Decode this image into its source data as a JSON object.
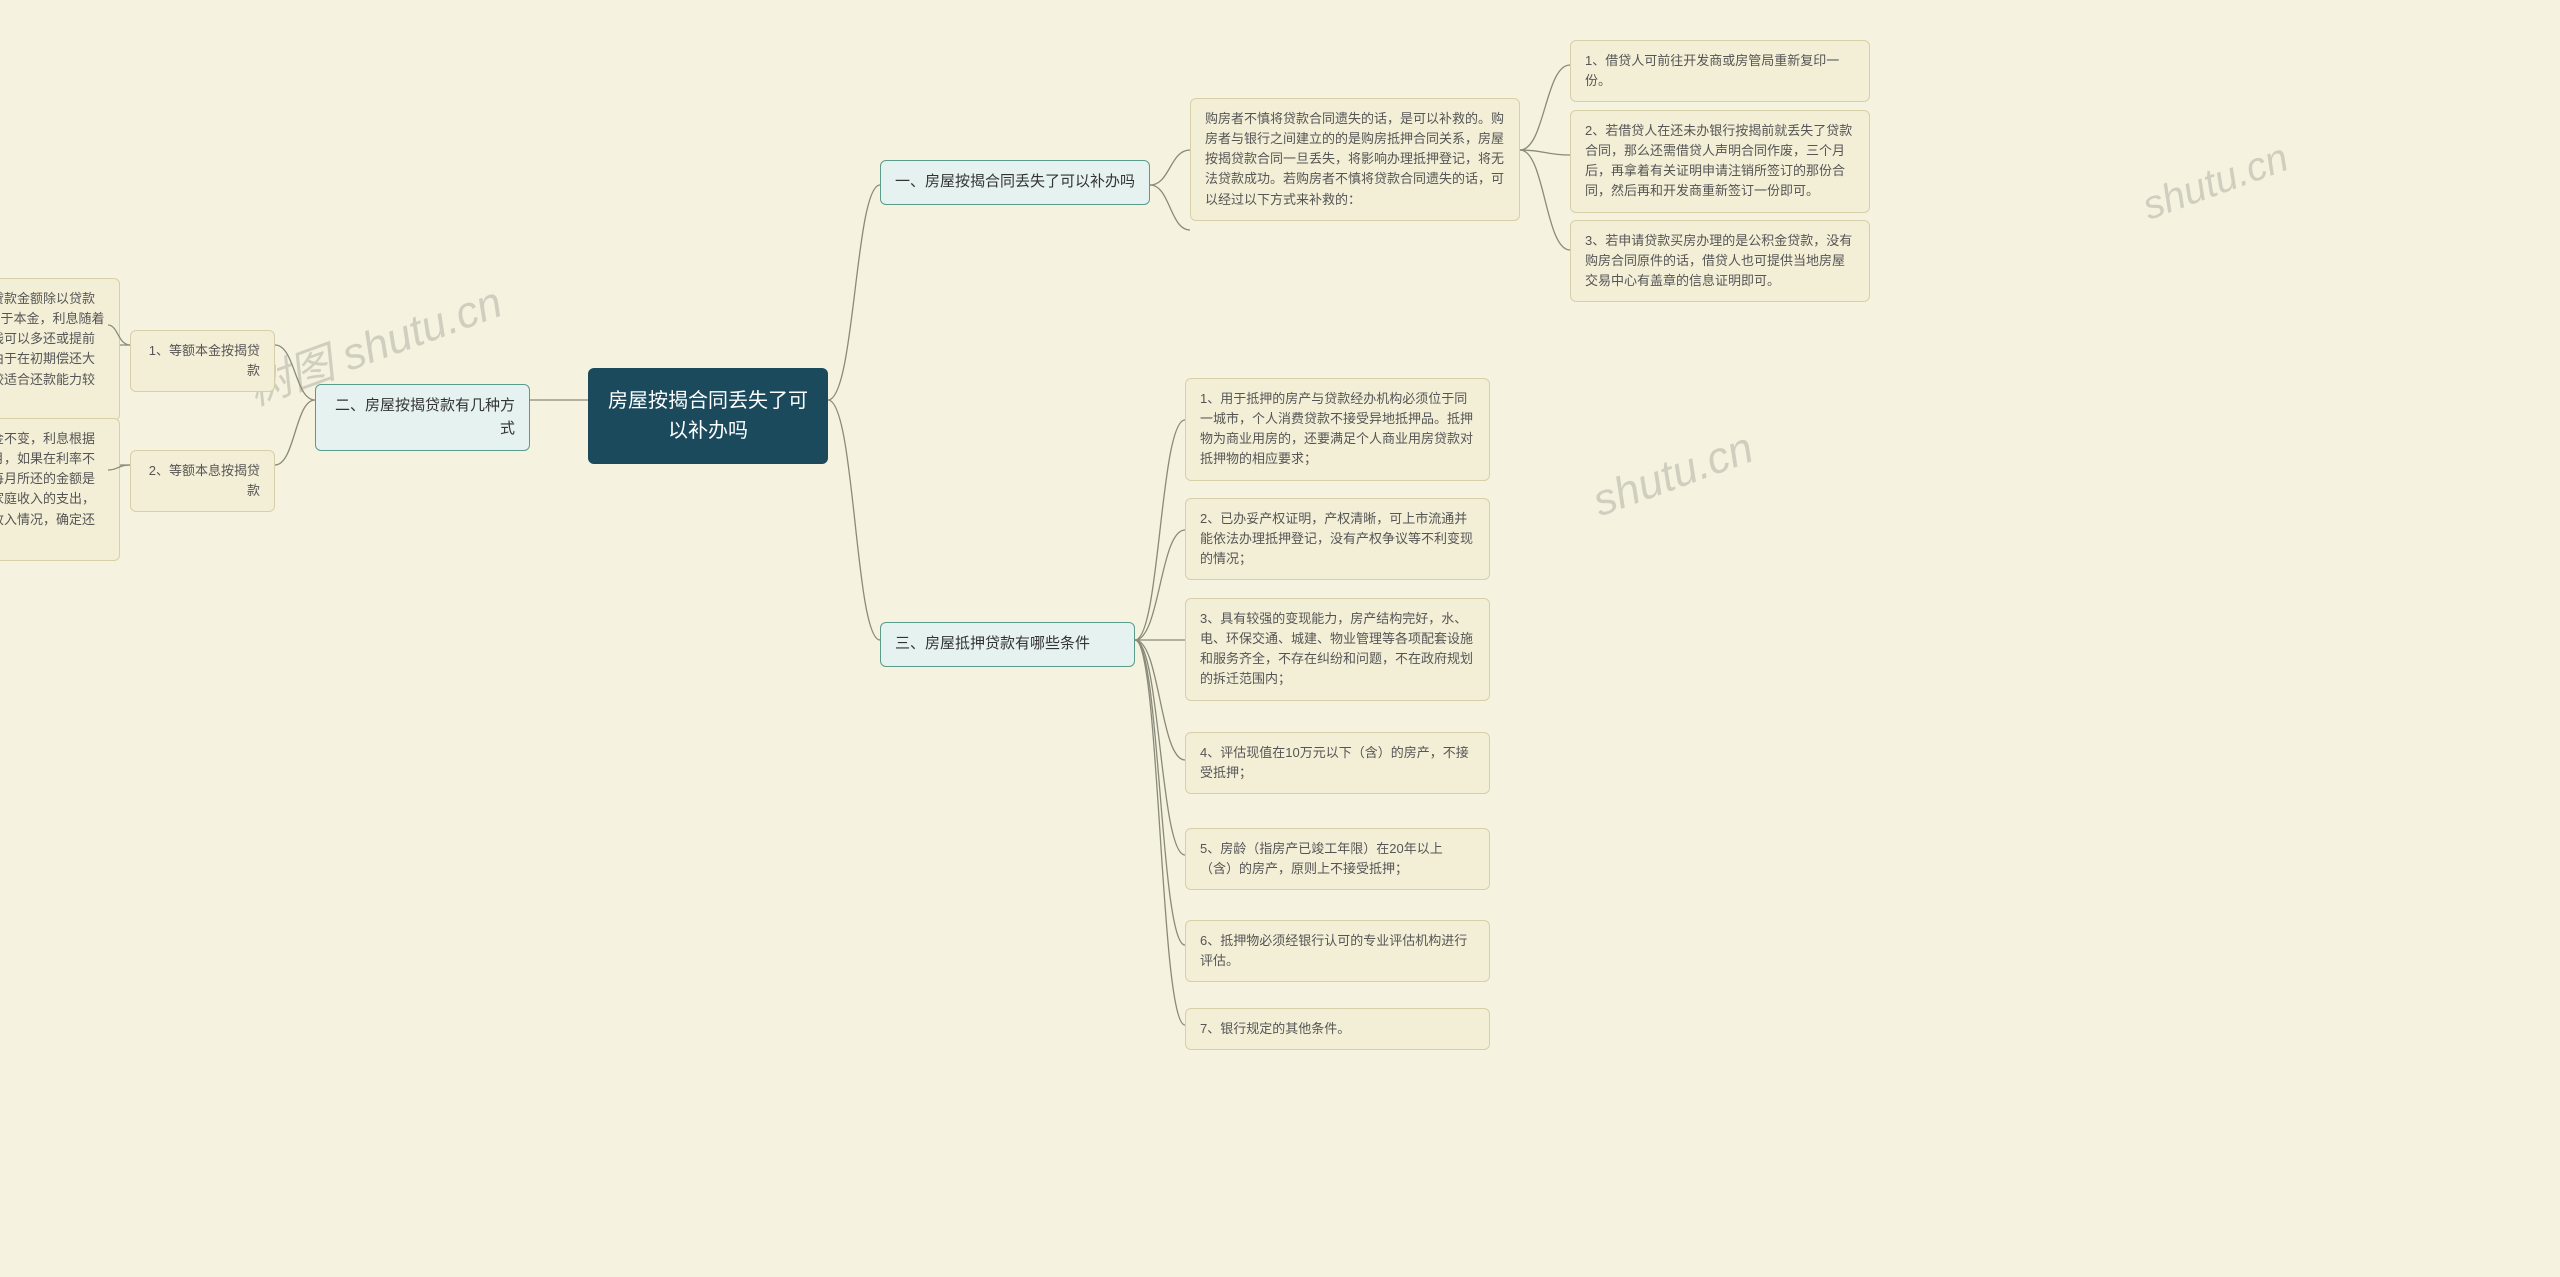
{
  "colors": {
    "background": "#f5f2e0",
    "root_bg": "#1b4a5c",
    "root_fg": "#ffffff",
    "branch_bg": "#e6f2ef",
    "branch_border": "#5a9b8c",
    "leaf_bg": "#f3efd7",
    "leaf_border": "#d6cfa8",
    "connector": "#8a8a7a",
    "watermark": "rgba(140,140,130,0.35)"
  },
  "root": {
    "text": "房屋按揭合同丢失了可以补办吗"
  },
  "branches": {
    "b1": {
      "label": "一、房屋按揭合同丢失了可以补办吗"
    },
    "b2": {
      "label": "二、房屋按揭贷款有几种方式"
    },
    "b3": {
      "label": "三、房屋抵押贷款有哪些条件"
    }
  },
  "leaves": {
    "b1_intro": "购房者不慎将贷款合同遗失的话，是可以补救的。购房者与银行之间建立的的是购房抵押合同关系，房屋按揭贷款合同一旦丢失，将影响办理抵押登记，将无法贷款成功。若购房者不慎将贷款合同遗失的话，可以经过以下方式来补救的：",
    "b1_1": "1、借贷人可前往开发商或房管局重新复印一份。",
    "b1_2": "2、若借贷人在还未办银行按揭前就丢失了贷款合同，那么还需借贷人声明合同作废，三个月后，再拿着有关证明申请注销所签订的那份合同，然后再和开发商重新签订一份即可。",
    "b1_3": "3、若申请贷款买房办理的是公积金贷款，没有购房合同原件的话，借贷人也可提供当地房屋交易中心有盖章的信息证明即可。",
    "b2_1_title": "1、等额本金按揭贷款",
    "b2_1_body": "这种按揭贷款方式指的就是贷款金额除以贷款期限（10或15年*12个月）等于本金，利息随着本金的减少而递减，中途有钱可以多还或提前结束，这种方法比较实用，由于在初期偿还大款项而减少利息的支出，比较适合还款能力较强的家庭。",
    "b2_2_title": "2、等额本息按揭贷款",
    "b2_2_body": "而这种按揭贷款方式是指本金不变，利息根据贷款期限的长短平摊到每个月，如果在利率不变的情况下，这贷款时间内每月所还的金额是不变的，可以有计划地控制家庭收入的支出，也便于每个家庭根据自己的收入情况，确定还贷能力。",
    "b3_1": "1、用于抵押的房产与贷款经办机构必须位于同一城市，个人消费贷款不接受异地抵押品。抵押物为商业用房的，还要满足个人商业用房贷款对抵押物的相应要求；",
    "b3_2": "2、已办妥产权证明，产权清晰，可上市流通并能依法办理抵押登记，没有产权争议等不利变现的情况；",
    "b3_3": "3、具有较强的变现能力，房产结构完好，水、电、环保交通、城建、物业管理等各项配套设施和服务齐全，不存在纠纷和问题，不在政府规划的拆迁范围内；",
    "b3_4": "4、评估现值在10万元以下（含）的房产，不接受抵押；",
    "b3_5": "5、房龄（指房产已竣工年限）在20年以上（含）的房产，原则上不接受抵押；",
    "b3_6": "6、抵押物必须经银行认可的专业评估机构进行评估。",
    "b3_7": "7、银行规定的其他条件。"
  },
  "watermarks": {
    "w1": "树图 shutu.cn",
    "w2": "shutu.cn"
  }
}
